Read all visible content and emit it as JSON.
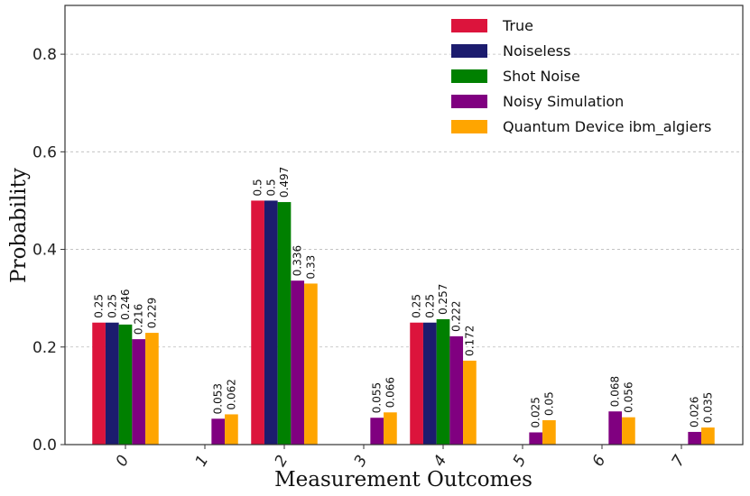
{
  "chart_data": {
    "type": "bar",
    "title": "",
    "xlabel": "Measurement Outcomes",
    "ylabel": "Probability",
    "ylim": [
      0,
      0.9
    ],
    "yticks": [
      0.0,
      0.2,
      0.4,
      0.6,
      0.8
    ],
    "ytick_labels": [
      "0.0",
      "0.2",
      "0.4",
      "0.6",
      "0.8"
    ],
    "grid": true,
    "legend_position": "top-right",
    "categories": [
      "0",
      "1",
      "2",
      "3",
      "4",
      "5",
      "6",
      "7"
    ],
    "series": [
      {
        "name": "True",
        "color": "#dc143c",
        "values": [
          0.25,
          null,
          0.5,
          null,
          0.25,
          null,
          null,
          null
        ],
        "labels": [
          "0.25",
          null,
          "0.5",
          null,
          "0.25",
          null,
          null,
          null
        ]
      },
      {
        "name": "Noiseless",
        "color": "#1c1c6e",
        "values": [
          0.25,
          null,
          0.5,
          null,
          0.25,
          null,
          null,
          null
        ],
        "labels": [
          "0.25",
          null,
          "0.5",
          null,
          "0.25",
          null,
          null,
          null
        ]
      },
      {
        "name": "Shot Noise",
        "color": "#008000",
        "values": [
          0.246,
          null,
          0.497,
          null,
          0.257,
          null,
          null,
          null
        ],
        "labels": [
          "0.246",
          null,
          "0.497",
          null,
          "0.257",
          null,
          null,
          null
        ]
      },
      {
        "name": "Noisy Simulation",
        "color": "#800080",
        "values": [
          0.216,
          0.053,
          0.336,
          0.055,
          0.222,
          0.025,
          0.068,
          0.026
        ],
        "labels": [
          "0.216",
          "0.053",
          "0.336",
          "0.055",
          "0.222",
          "0.025",
          "0.068",
          "0.026"
        ]
      },
      {
        "name": "Quantum Device ibm_algiers",
        "color": "#ffa500",
        "values": [
          0.229,
          0.062,
          0.33,
          0.066,
          0.172,
          0.05,
          0.056,
          0.035
        ],
        "labels": [
          "0.229",
          "0.062",
          "0.33",
          "0.066",
          "0.172",
          "0.05",
          "0.056",
          "0.035"
        ]
      }
    ]
  }
}
